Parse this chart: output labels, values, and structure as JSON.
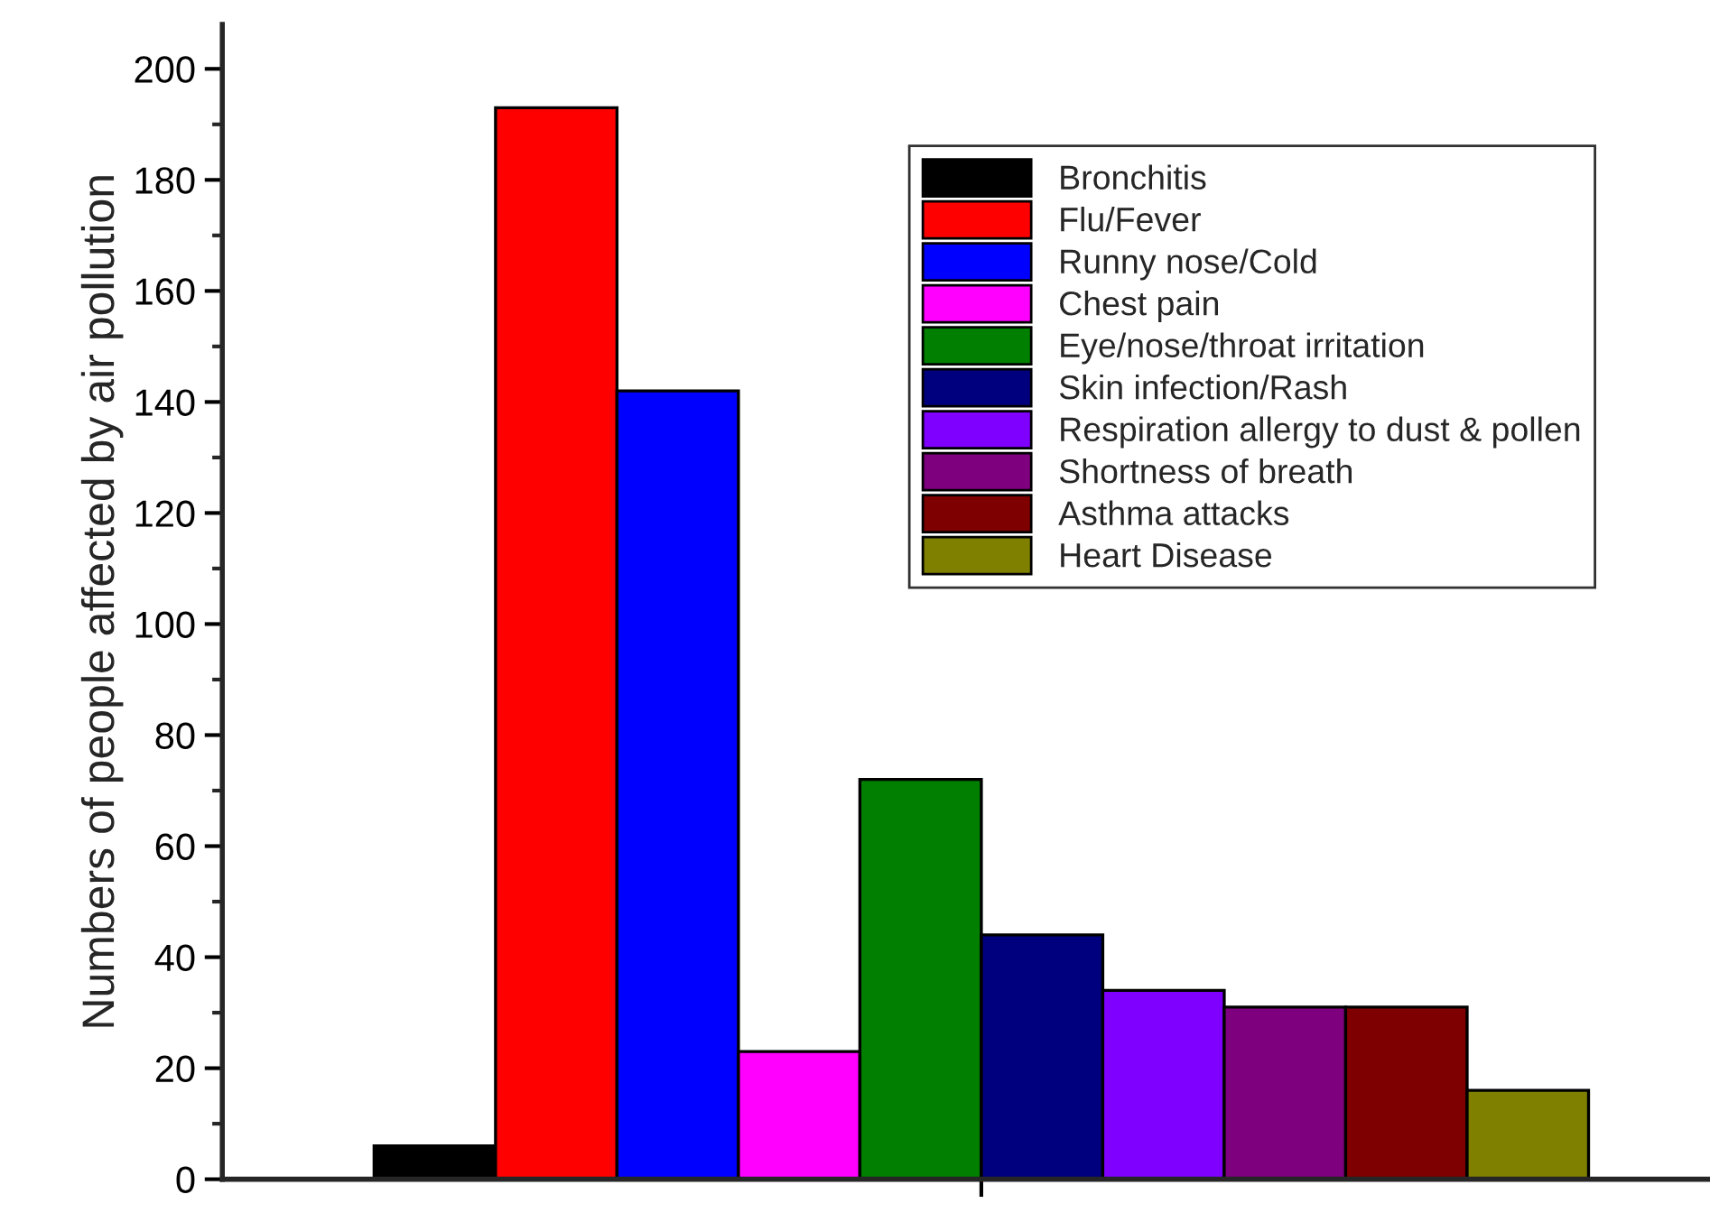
{
  "chart_data": {
    "type": "bar",
    "ylabel": "Numbers of people affected by air pollution",
    "categories": [
      null
    ],
    "series": [
      {
        "name": "Bronchitis",
        "color": "#000000",
        "values": [
          6
        ]
      },
      {
        "name": "Flu/Fever",
        "color": "#ff0000",
        "values": [
          193
        ]
      },
      {
        "name": "Runny nose/Cold",
        "color": "#0000ff",
        "values": [
          142
        ]
      },
      {
        "name": "Chest pain",
        "color": "#ff00ff",
        "values": [
          23
        ]
      },
      {
        "name": "Eye/nose/throat irritation",
        "color": "#007f00",
        "values": [
          72
        ]
      },
      {
        "name": "Skin infection/Rash",
        "color": "#00007f",
        "values": [
          44
        ]
      },
      {
        "name": "Respiration allergy to dust & pollen",
        "color": "#7f00ff",
        "values": [
          34
        ]
      },
      {
        "name": "Shortness of breath",
        "color": "#7f007f",
        "values": [
          31
        ]
      },
      {
        "name": "Asthma attacks",
        "color": "#7f0000",
        "values": [
          31
        ]
      },
      {
        "name": "Heart Disease",
        "color": "#7f7f00",
        "values": [
          16
        ]
      }
    ],
    "ylim": [
      0,
      208
    ],
    "yticks": [
      0,
      20,
      40,
      60,
      80,
      100,
      120,
      140,
      160,
      180,
      200
    ],
    "legend": "top right",
    "grid": false
  }
}
